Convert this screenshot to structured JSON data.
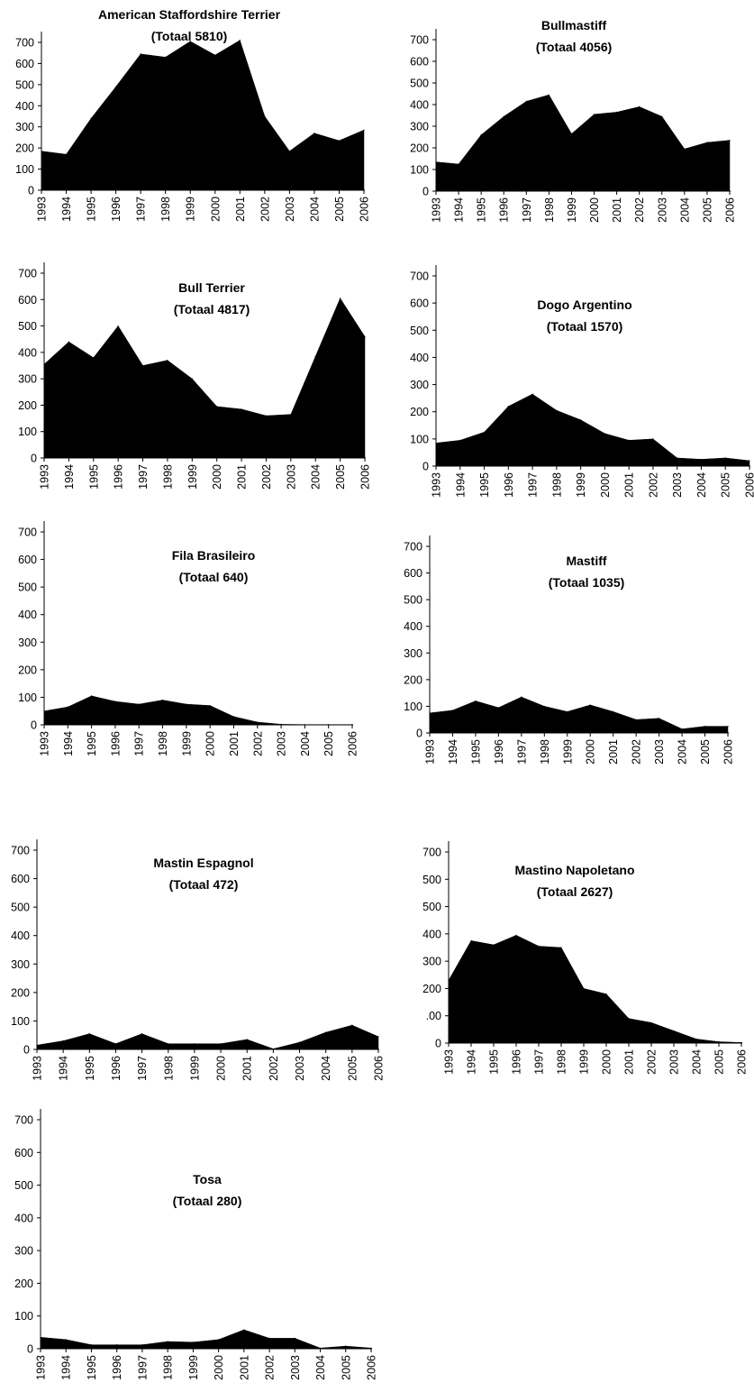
{
  "chart_data": [
    {
      "type": "area",
      "title": "American Staffordshire Terrier",
      "subtitle": "(Totaal 5810)",
      "x": [
        "1993",
        "1994",
        "1995",
        "1996",
        "1997",
        "1998",
        "1999",
        "2000",
        "2001",
        "2002",
        "2003",
        "2004",
        "2005",
        "2006"
      ],
      "values": [
        185,
        170,
        340,
        490,
        645,
        630,
        705,
        640,
        710,
        350,
        185,
        270,
        235,
        285
      ],
      "ylim": [
        0,
        700
      ],
      "yticks": [
        0,
        100,
        200,
        300,
        400,
        500,
        600,
        700
      ],
      "grid": false,
      "color": "#000000"
    },
    {
      "type": "area",
      "title": "Bullmastiff",
      "subtitle": "(Totaal 4056)",
      "x": [
        "1993",
        "1994",
        "1995",
        "1996",
        "1997",
        "1998",
        "1999",
        "2000",
        "2001",
        "2002",
        "2003",
        "2004",
        "2005",
        "2006"
      ],
      "values": [
        135,
        125,
        260,
        345,
        415,
        445,
        265,
        355,
        365,
        390,
        345,
        195,
        225,
        235
      ],
      "ylim": [
        0,
        700
      ],
      "yticks": [
        0,
        100,
        200,
        300,
        400,
        500,
        600,
        700
      ],
      "grid": false,
      "color": "#000000"
    },
    {
      "type": "area",
      "title": "Bull Terrier",
      "subtitle": "(Totaal 4817)",
      "x": [
        "1993",
        "1994",
        "1995",
        "1996",
        "1997",
        "1998",
        "1999",
        "2000",
        "2001",
        "2002",
        "2003",
        "2004",
        "2005",
        "2006"
      ],
      "values": [
        355,
        440,
        380,
        500,
        350,
        370,
        300,
        195,
        185,
        160,
        165,
        385,
        605,
        460
      ],
      "ylim": [
        0,
        700
      ],
      "yticks": [
        0,
        100,
        200,
        300,
        400,
        500,
        600,
        700
      ],
      "grid": false,
      "color": "#000000"
    },
    {
      "type": "area",
      "title": "Dogo Argentino",
      "subtitle": "(Totaal 1570)",
      "x": [
        "1993",
        "1994",
        "1995",
        "1996",
        "1997",
        "1998",
        "1999",
        "2000",
        "2001",
        "2002",
        "2003",
        "2004",
        "2005",
        "2006"
      ],
      "values": [
        85,
        95,
        125,
        220,
        265,
        205,
        170,
        120,
        95,
        100,
        30,
        25,
        30,
        20
      ],
      "ylim": [
        0,
        700
      ],
      "yticks": [
        0,
        100,
        200,
        300,
        400,
        500,
        600,
        700
      ],
      "grid": false,
      "color": "#000000"
    },
    {
      "type": "area",
      "title": "Fila Brasileiro",
      "subtitle": "(Totaal 640)",
      "x": [
        "1993",
        "1994",
        "1995",
        "1996",
        "1997",
        "1998",
        "1999",
        "2000",
        "2001",
        "2002",
        "2003",
        "2004",
        "2005",
        "2006"
      ],
      "values": [
        50,
        65,
        105,
        85,
        75,
        90,
        75,
        70,
        30,
        10,
        2,
        1,
        1,
        1
      ],
      "ylim": [
        0,
        700
      ],
      "yticks": [
        0,
        100,
        200,
        300,
        400,
        500,
        600,
        700
      ],
      "grid": false,
      "color": "#000000"
    },
    {
      "type": "area",
      "title": "Mastiff",
      "subtitle": "(Totaal 1035)",
      "x": [
        "1993",
        "1994",
        "1995",
        "1996",
        "1997",
        "1998",
        "1999",
        "2000",
        "2001",
        "2002",
        "2003",
        "2004",
        "2005",
        "2006"
      ],
      "values": [
        75,
        85,
        120,
        95,
        135,
        100,
        80,
        105,
        80,
        50,
        55,
        15,
        25,
        25
      ],
      "ylim": [
        0,
        700
      ],
      "yticks": [
        0,
        100,
        200,
        300,
        400,
        500,
        600,
        700
      ],
      "grid": false,
      "color": "#000000"
    },
    {
      "type": "area",
      "title": "Mastin Espagnol",
      "subtitle": "(Totaal 472)",
      "x": [
        "1993",
        "1994",
        "1995",
        "1996",
        "1997",
        "1998",
        "1999",
        "2000",
        "2001",
        "2002",
        "2003",
        "2004",
        "2005",
        "2006"
      ],
      "values": [
        15,
        30,
        55,
        20,
        55,
        20,
        20,
        20,
        35,
        2,
        25,
        60,
        85,
        45
      ],
      "ylim": [
        0,
        700
      ],
      "yticks": [
        0,
        100,
        200,
        300,
        400,
        500,
        600,
        700
      ],
      "grid": false,
      "color": "#000000"
    },
    {
      "type": "area",
      "title": "Mastino Napoletano",
      "subtitle": "(Totaal 2627)",
      "x": [
        "1993",
        "1994",
        "1995",
        "1996",
        "1997",
        "1998",
        "1999",
        "2000",
        "2001",
        "2002",
        "2003",
        "2004",
        "2005",
        "2006"
      ],
      "values": [
        230,
        375,
        360,
        395,
        355,
        350,
        200,
        180,
        90,
        75,
        45,
        15,
        5,
        2
      ],
      "ylim": [
        0,
        700
      ],
      "yticks": [
        "700",
        "500",
        "500",
        "400",
        "300",
        "200",
        ".00",
        "0"
      ],
      "grid": false,
      "color": "#000000"
    },
    {
      "type": "area",
      "title": "Tosa",
      "subtitle": "(Totaal 280)",
      "x": [
        "1993",
        "1994",
        "1995",
        "1996",
        "1997",
        "1998",
        "1999",
        "2000",
        "2001",
        "2002",
        "2003",
        "2004",
        "2005",
        "2006"
      ],
      "values": [
        35,
        28,
        12,
        12,
        12,
        22,
        20,
        28,
        58,
        32,
        32,
        2,
        8,
        2
      ],
      "ylim": [
        0,
        700
      ],
      "yticks": [
        0,
        100,
        200,
        300,
        400,
        500,
        600,
        700
      ],
      "grid": false,
      "color": "#000000"
    }
  ]
}
